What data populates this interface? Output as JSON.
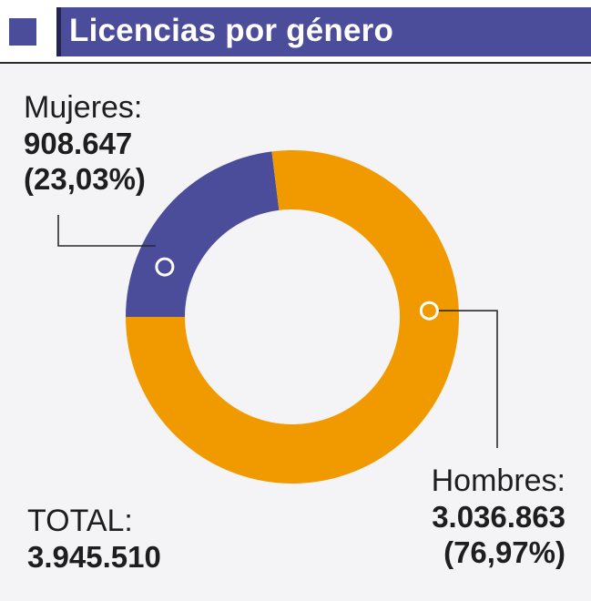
{
  "header": {
    "title": "Licencias por género"
  },
  "colors": {
    "brand": "#4b4d9a",
    "mujeres": "#4b4d9a",
    "hombres": "#f19a00"
  },
  "chart_data": {
    "type": "pie",
    "variant": "donut",
    "title": "Licencias por género",
    "slices": [
      {
        "name": "Mujeres",
        "label": "Mujeres:",
        "value": 908647,
        "value_text": "908.647",
        "percent": 23.03,
        "percent_text": "(23,03%)",
        "color": "#4b4d9a"
      },
      {
        "name": "Hombres",
        "label": "Hombres:",
        "value": 3036863,
        "value_text": "3.036.863",
        "percent": 76.97,
        "percent_text": "(76,97%)",
        "color": "#f19a00"
      }
    ],
    "total": {
      "label": "TOTAL:",
      "value": 3945510,
      "value_text": "3.945.510"
    }
  }
}
